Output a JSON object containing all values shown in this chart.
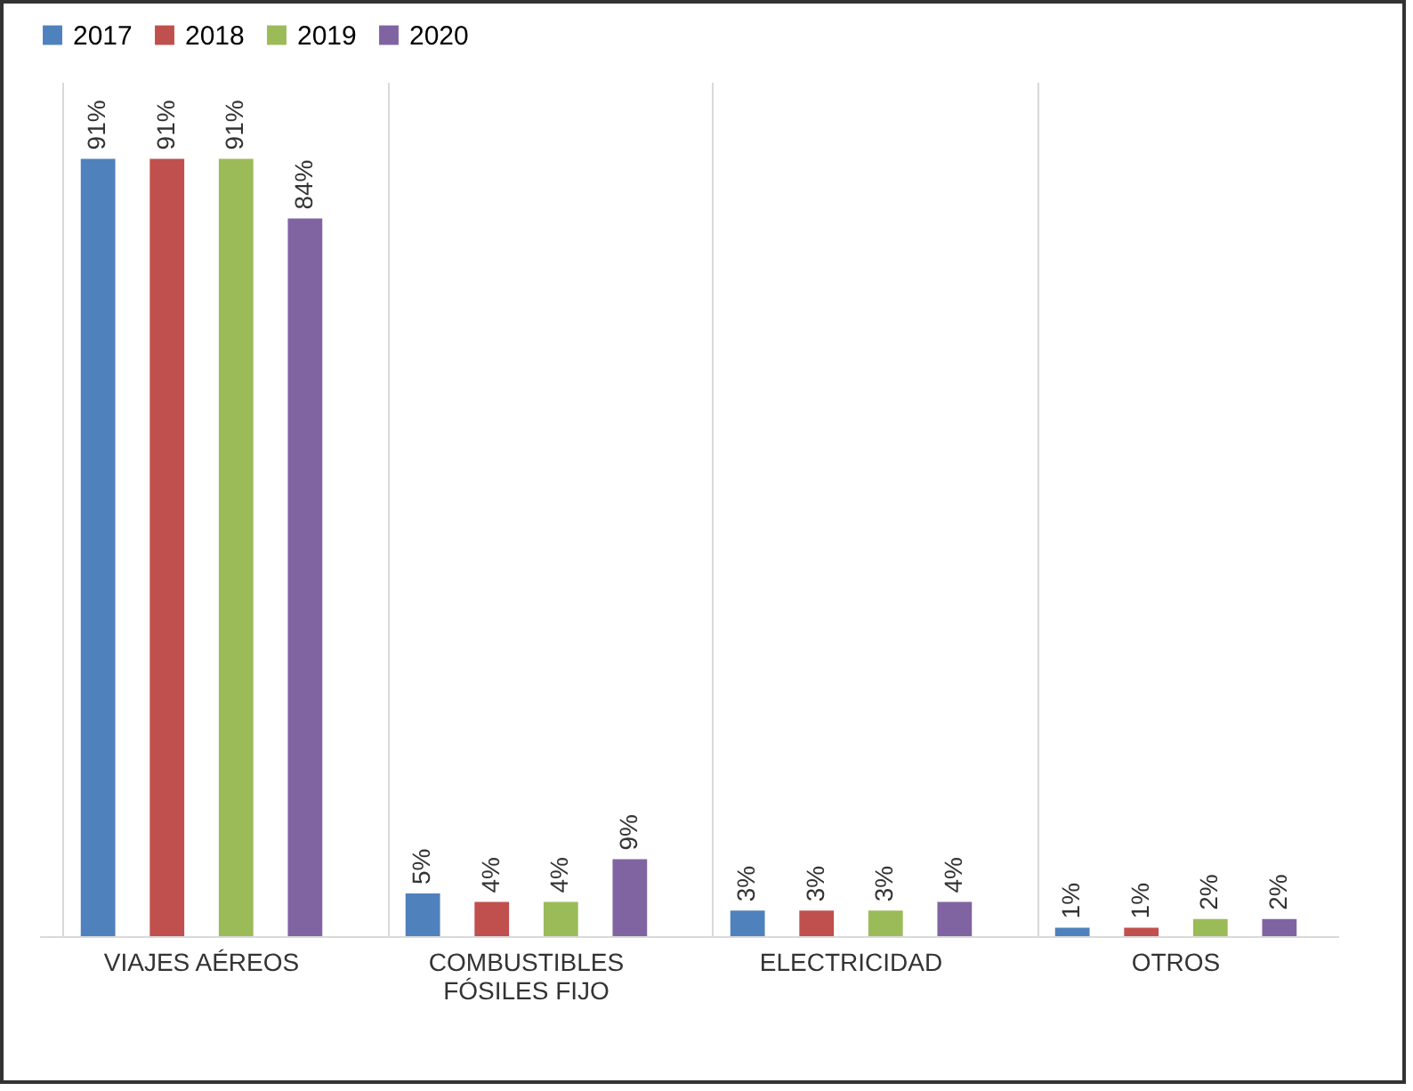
{
  "chart_data": {
    "type": "bar",
    "categories": [
      "VIAJES AÉREOS",
      "COMBUSTIBLES FÓSILES FIJO",
      "ELECTRICIDAD",
      "OTROS"
    ],
    "series": [
      {
        "name": "2017",
        "color": "#4f81bd",
        "values": [
          91,
          5,
          3,
          1
        ],
        "value_labels": [
          "91%",
          "5%",
          "3%",
          "1%"
        ]
      },
      {
        "name": "2018",
        "color": "#c0504d",
        "values": [
          91,
          4,
          3,
          1
        ],
        "value_labels": [
          "91%",
          "4%",
          "3%",
          "1%"
        ]
      },
      {
        "name": "2019",
        "color": "#9bbb59",
        "values": [
          91,
          4,
          3,
          2
        ],
        "value_labels": [
          "91%",
          "4%",
          "3%",
          "2%"
        ]
      },
      {
        "name": "2020",
        "color": "#8064a2",
        "values": [
          84,
          9,
          4,
          2
        ],
        "value_labels": [
          "84%",
          "9%",
          "4%",
          "2%"
        ]
      }
    ],
    "grid": "x",
    "legend": "top",
    "tick_labels": "x"
  }
}
